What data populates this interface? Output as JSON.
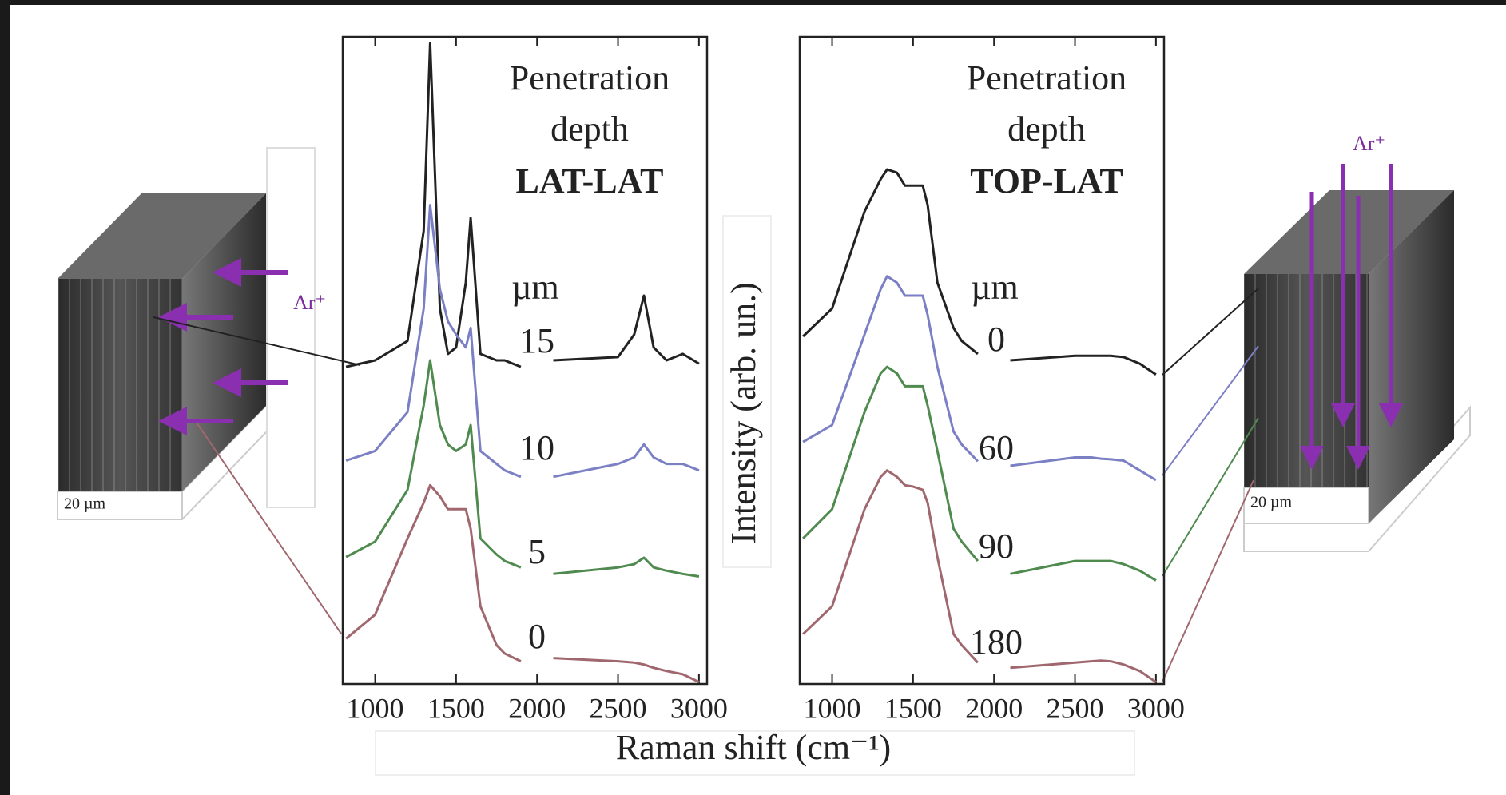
{
  "figure_labels": {
    "y_label": "Intensity (arb. un.)",
    "x_label": "Raman shift (cm⁻¹)"
  },
  "illustrations": {
    "left": {
      "ion": "Ar⁺",
      "scale": "20 µm"
    },
    "right": {
      "ion": "Ar⁺",
      "scale": "20 µm"
    }
  },
  "chart_data": [
    {
      "type": "line",
      "title_lines": [
        "Penetration",
        "depth",
        "LAT-LAT"
      ],
      "unit_label": "µm",
      "x": [
        820,
        1000,
        1200,
        1300,
        1340,
        1400,
        1450,
        1500,
        1560,
        1590,
        1650,
        1750,
        1800,
        1900,
        2000,
        2100,
        2500,
        2600,
        2660,
        2720,
        2800,
        2900,
        3000
      ],
      "xlim": [
        800,
        3050
      ],
      "xticks": [
        1000,
        1500,
        2000,
        2500,
        3000
      ],
      "ylim": [
        0,
        100
      ],
      "series": [
        {
          "name": "15",
          "color": "#222222",
          "values": [
            49,
            50,
            53,
            70,
            99,
            58,
            51,
            52,
            62,
            72,
            51,
            50,
            50,
            49,
            null,
            50,
            50.5,
            54,
            60,
            52,
            50,
            51,
            49.5
          ]
        },
        {
          "name": "10",
          "color": "#7b7fc4",
          "values": [
            34.5,
            36,
            42,
            58,
            74,
            61,
            56,
            54,
            52,
            55,
            36,
            34,
            33,
            32,
            null,
            32,
            34,
            35,
            37,
            35,
            34,
            34,
            33
          ]
        },
        {
          "name": "5",
          "color": "#4f8a4f",
          "values": [
            19.6,
            22,
            30,
            43,
            50,
            40,
            37,
            36,
            37,
            40,
            22.5,
            20,
            19,
            18,
            null,
            17,
            18,
            18.5,
            19.5,
            18,
            17.5,
            17,
            16.6
          ]
        },
        {
          "name": "0",
          "color": "#a0686e",
          "values": [
            7,
            10.7,
            22.5,
            28,
            30.7,
            29,
            27,
            27,
            27,
            24,
            12,
            6,
            4.7,
            3.5,
            null,
            4,
            3.5,
            3.3,
            3,
            2.5,
            2,
            1.5,
            0.3
          ]
        }
      ]
    },
    {
      "type": "line",
      "title_lines": [
        "Penetration",
        "depth",
        "TOP-LAT"
      ],
      "unit_label": "µm",
      "x": [
        820,
        1000,
        1200,
        1300,
        1340,
        1400,
        1450,
        1500,
        1560,
        1590,
        1650,
        1750,
        1800,
        1900,
        2000,
        2100,
        2500,
        2600,
        2660,
        2720,
        2800,
        2900,
        3000
      ],
      "xlim": [
        800,
        3050
      ],
      "xticks": [
        1000,
        1500,
        2000,
        2500,
        3000
      ],
      "ylim": [
        0,
        100
      ],
      "series": [
        {
          "name": "0",
          "color": "#222222",
          "values": [
            53.7,
            58,
            73,
            78,
            79.5,
            79,
            77,
            77,
            77,
            74,
            62,
            55,
            53,
            51,
            null,
            50,
            50.7,
            50.7,
            50.7,
            50.7,
            50.5,
            49.5,
            47.8
          ]
        },
        {
          "name": "60",
          "color": "#7b7fc4",
          "values": [
            37.4,
            40,
            54,
            61,
            63,
            62,
            60,
            60,
            60,
            57,
            49,
            39,
            37,
            34.4,
            null,
            33.7,
            35,
            35,
            34.8,
            34.7,
            34.5,
            33,
            31.5
          ]
        },
        {
          "name": "90",
          "color": "#4f8a4f",
          "values": [
            22.5,
            27,
            42,
            48,
            49,
            48,
            46,
            46,
            46,
            43,
            36,
            24,
            22,
            19,
            null,
            17,
            19,
            19,
            19,
            19,
            18.5,
            17.5,
            16
          ]
        },
        {
          "name": "180",
          "color": "#a0686e",
          "values": [
            7.7,
            12,
            27,
            32,
            33,
            32,
            30.7,
            30.5,
            30,
            28,
            19.6,
            7.7,
            6,
            3.3,
            null,
            2.5,
            3.3,
            3.5,
            3.6,
            3.5,
            3,
            2,
            0.3
          ]
        }
      ]
    }
  ]
}
